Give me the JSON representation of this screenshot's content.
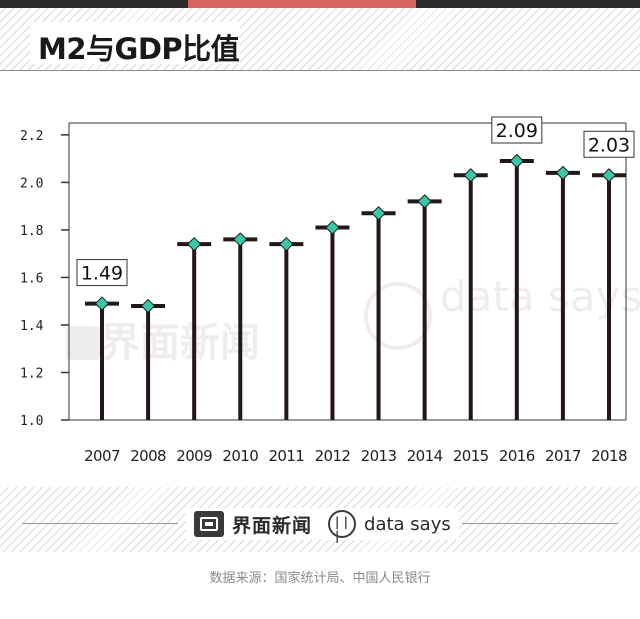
{
  "title": "M2与GDP比值",
  "colors": {
    "topbar_dark": "#2b2b2b",
    "topbar_accent": "#d9645f",
    "stem": "#231815",
    "marker": "#3cc6a8",
    "marker_stroke": "#1a1a1a"
  },
  "watermarks": {
    "left": "界面新闻",
    "right": "data says"
  },
  "footer": {
    "brand": "界面新闻",
    "brand_icon": "jiemian-logo-icon",
    "secondary": "data says",
    "secondary_icon": "datasays-logo-icon",
    "source": "数据来源：国家统计局、中国人民银行"
  },
  "chart_data": {
    "type": "line",
    "style": "lollipop",
    "title": "M2与GDP比值",
    "categories": [
      "2007",
      "2008",
      "2009",
      "2010",
      "2011",
      "2012",
      "2013",
      "2014",
      "2015",
      "2016",
      "2017",
      "2018"
    ],
    "values": [
      1.49,
      1.48,
      1.74,
      1.76,
      1.74,
      1.81,
      1.87,
      1.92,
      2.03,
      2.09,
      2.04,
      2.03
    ],
    "yticks": [
      "1.0",
      "1.2",
      "1.4",
      "1.6",
      "1.8",
      "2.0",
      "2.2"
    ],
    "ylim": [
      1.0,
      2.25
    ],
    "annotations": [
      {
        "index": 0,
        "text": "1.49"
      },
      {
        "index": 9,
        "text": "2.09"
      },
      {
        "index": 11,
        "text": "2.03"
      }
    ],
    "grid": false
  }
}
